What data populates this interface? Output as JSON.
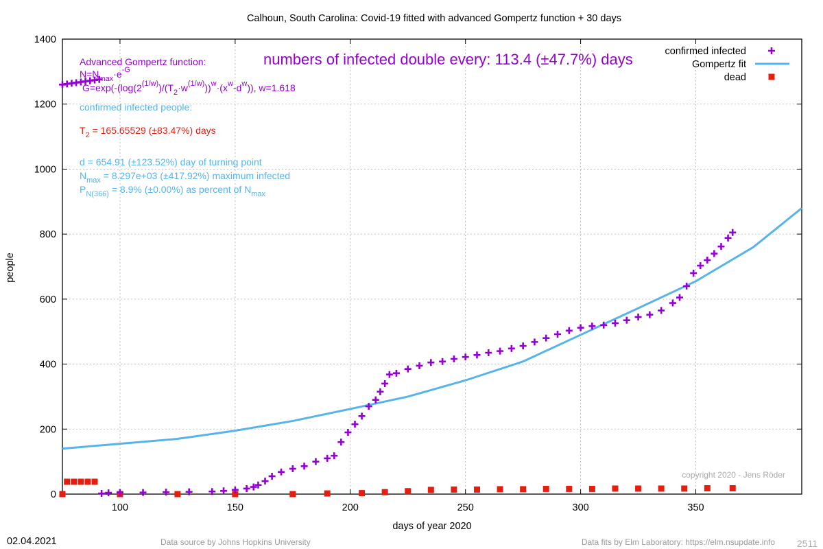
{
  "chart_data": {
    "type": "scatter",
    "title": "Calhoun,  South Carolina: Covid-19 fitted with advanced Gompertz function + 30 days",
    "xlabel": "days of year 2020",
    "ylabel": "people",
    "xlim": [
      75,
      396
    ],
    "ylim": [
      0,
      1400
    ],
    "xticks": [
      100,
      150,
      200,
      250,
      300,
      350
    ],
    "yticks": [
      0,
      200,
      400,
      600,
      800,
      1000,
      1200,
      1400
    ],
    "grid": true,
    "legend_position": "top-right",
    "series": [
      {
        "name": "confirmed infected",
        "color": "#9400d3",
        "marker": "plus",
        "points": [
          [
            75,
            1260
          ],
          [
            77,
            1262
          ],
          [
            79,
            1264
          ],
          [
            81,
            1266
          ],
          [
            83,
            1268
          ],
          [
            85,
            1270
          ],
          [
            87,
            1272
          ],
          [
            89,
            1274
          ],
          [
            91,
            1276
          ],
          [
            92,
            2
          ],
          [
            95,
            4
          ],
          [
            100,
            5
          ],
          [
            110,
            5
          ],
          [
            120,
            6
          ],
          [
            130,
            7
          ],
          [
            140,
            8
          ],
          [
            145,
            10
          ],
          [
            150,
            13
          ],
          [
            155,
            17
          ],
          [
            158,
            22
          ],
          [
            160,
            28
          ],
          [
            163,
            40
          ],
          [
            166,
            55
          ],
          [
            170,
            68
          ],
          [
            175,
            78
          ],
          [
            180,
            86
          ],
          [
            185,
            100
          ],
          [
            190,
            110
          ],
          [
            193,
            118
          ],
          [
            196,
            160
          ],
          [
            199,
            190
          ],
          [
            202,
            215
          ],
          [
            205,
            240
          ],
          [
            208,
            270
          ],
          [
            211,
            290
          ],
          [
            213,
            315
          ],
          [
            215,
            340
          ],
          [
            217,
            368
          ],
          [
            220,
            372
          ],
          [
            225,
            385
          ],
          [
            230,
            395
          ],
          [
            235,
            405
          ],
          [
            240,
            408
          ],
          [
            245,
            416
          ],
          [
            250,
            422
          ],
          [
            255,
            428
          ],
          [
            260,
            435
          ],
          [
            265,
            440
          ],
          [
            270,
            448
          ],
          [
            275,
            456
          ],
          [
            280,
            468
          ],
          [
            285,
            480
          ],
          [
            290,
            492
          ],
          [
            295,
            503
          ],
          [
            300,
            512
          ],
          [
            305,
            517
          ],
          [
            310,
            520
          ],
          [
            315,
            526
          ],
          [
            320,
            535
          ],
          [
            325,
            545
          ],
          [
            330,
            552
          ],
          [
            335,
            565
          ],
          [
            340,
            588
          ],
          [
            343,
            605
          ],
          [
            346,
            640
          ],
          [
            349,
            680
          ],
          [
            352,
            703
          ],
          [
            355,
            720
          ],
          [
            358,
            740
          ],
          [
            361,
            762
          ],
          [
            364,
            788
          ],
          [
            366,
            805
          ]
        ]
      },
      {
        "name": "Gompertz fit",
        "color": "#56b4e9",
        "marker": "line",
        "points": [
          [
            75,
            140
          ],
          [
            100,
            155
          ],
          [
            125,
            170
          ],
          [
            150,
            195
          ],
          [
            175,
            225
          ],
          [
            200,
            262
          ],
          [
            225,
            300
          ],
          [
            250,
            350
          ],
          [
            275,
            408
          ],
          [
            300,
            490
          ],
          [
            325,
            572
          ],
          [
            350,
            655
          ],
          [
            375,
            760
          ],
          [
            396,
            880
          ]
        ]
      },
      {
        "name": "dead",
        "color": "#e51e10",
        "marker": "square",
        "points": [
          [
            75,
            0
          ],
          [
            100,
            0
          ],
          [
            125,
            0
          ],
          [
            150,
            0
          ],
          [
            175,
            0
          ],
          [
            190,
            2
          ],
          [
            205,
            3
          ],
          [
            215,
            6
          ],
          [
            225,
            9
          ],
          [
            235,
            13
          ],
          [
            245,
            14
          ],
          [
            255,
            14
          ],
          [
            265,
            15
          ],
          [
            275,
            15
          ],
          [
            285,
            16
          ],
          [
            295,
            16
          ],
          [
            305,
            16
          ],
          [
            315,
            17
          ],
          [
            325,
            17
          ],
          [
            335,
            17
          ],
          [
            345,
            17
          ],
          [
            355,
            18
          ],
          [
            366,
            18
          ],
          [
            77,
            38
          ],
          [
            80,
            38
          ],
          [
            83,
            38
          ],
          [
            86,
            38
          ],
          [
            89,
            38
          ]
        ]
      }
    ]
  },
  "annotations": {
    "doubling": "numbers of infected double every: 113.4 (±47.7%) days",
    "formula_title": "Advanced Gompertz function:",
    "formula_n_a": "N=N",
    "formula_n_sub": "max",
    "formula_n_b": "·e",
    "formula_n_sup": "-G",
    "formula_g_a": "G=exp(-(log(2",
    "formula_g_sup1": "(1/w)",
    "formula_g_b": ")/(T",
    "formula_g_sub2": "2",
    "formula_g_c": "·w",
    "formula_g_sup2": "(1/w)",
    "formula_g_d": "))",
    "formula_g_sup3": "w",
    "formula_g_e": "·(x",
    "formula_g_sup4": "w",
    "formula_g_f": "-d",
    "formula_g_sup5": "w",
    "formula_g_g": ")), w=1.618",
    "confirmed_label": "confirmed infected people:",
    "t2_a": "T",
    "t2_sub": "2",
    "t2_b": " = 165.65529 (±83.47%) days",
    "d_line": "d = 654.91 (±123.52%) day of turning point",
    "nmax_a": "N",
    "nmax_sub": "max",
    "nmax_b": " = 8.297e+03 (±417.92%) maximum infected",
    "pn_a": "P",
    "pn_sub": "N(366)",
    "pn_b": " = 8.9% (±0.00%) as percent of N",
    "pn_sub2": "max",
    "copyright": "copyright 2020 - Jens Röder"
  },
  "footer": {
    "date": "02.04.2021",
    "source": "Data source by Johns Hopkins University",
    "fits": "Data fits by Elm Laboratory: https://elm.nsupdate.info",
    "page_number": "2511"
  }
}
